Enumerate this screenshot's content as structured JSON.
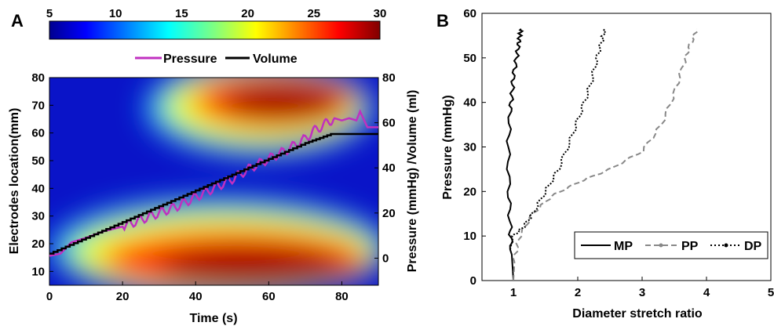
{
  "panels": {
    "a": "A",
    "b": "B"
  },
  "chart_data": [
    {
      "type": "heatmap",
      "panel": "A",
      "colorbar": {
        "ticks": [
          "5",
          "10",
          "15",
          "20",
          "25",
          "30"
        ],
        "range": [
          5,
          30
        ],
        "colormap": "jet",
        "placement": "top"
      },
      "legend": {
        "placement": "top",
        "entries": [
          {
            "label": "Pressure",
            "color": "#c030c0"
          },
          {
            "label": "Volume",
            "color": "#000000"
          }
        ]
      },
      "xlabel": "Time (s)",
      "ylabel": "Electrodes location(mm)",
      "y2label": "Pressure (mmHg) /Volume (ml)",
      "xlim": [
        0,
        90
      ],
      "ylim": [
        5,
        80
      ],
      "y2lim": [
        -12,
        80
      ],
      "xticks": [
        "0",
        "20",
        "40",
        "60",
        "80"
      ],
      "yticks": [
        "10",
        "20",
        "30",
        "40",
        "50",
        "60",
        "70",
        "80"
      ],
      "y2ticks": [
        "0",
        "20",
        "40",
        "60",
        "80"
      ],
      "series": [
        {
          "name": "Pressure",
          "axis": "right",
          "x": [
            0,
            3,
            6,
            10,
            15,
            20,
            25,
            30,
            35,
            40,
            45,
            50,
            55,
            60,
            65,
            70,
            72,
            75,
            78,
            80,
            82,
            84,
            85,
            87,
            90
          ],
          "y": [
            1,
            2,
            7,
            9,
            12,
            14,
            17,
            20,
            23,
            27,
            31,
            35,
            40,
            44,
            48,
            53,
            56,
            59,
            62,
            61,
            62,
            61,
            65,
            58,
            58
          ]
        },
        {
          "name": "Volume",
          "axis": "right",
          "x": [
            0,
            10,
            20,
            30,
            40,
            50,
            60,
            70,
            77,
            80,
            90
          ],
          "y": [
            2,
            9,
            16,
            23,
            30,
            37,
            44,
            51,
            55,
            55,
            55
          ]
        }
      ]
    },
    {
      "type": "line",
      "panel": "B",
      "xlabel": "Diameter stretch ratio",
      "ylabel": "Pressure (mmHg)",
      "xlim": [
        0,
        5
      ],
      "ylim": [
        0,
        60
      ],
      "xticks": [
        "1",
        "2",
        "3",
        "4",
        "5"
      ],
      "yticks": [
        "0",
        "10",
        "20",
        "30",
        "40",
        "50",
        "60"
      ],
      "legend": {
        "placement": "bottom-right"
      },
      "series": [
        {
          "name": "MP",
          "color": "#000000",
          "style": "solid",
          "x": [
            1.0,
            0.97,
            0.95,
            0.93,
            0.92,
            0.95,
            0.98,
            1.0,
            1.05,
            1.08,
            1.1,
            1.12
          ],
          "y": [
            0,
            7,
            12,
            20,
            30,
            38,
            42,
            46,
            50,
            53,
            55,
            56.5
          ]
        },
        {
          "name": "PP",
          "color": "#888888",
          "style": "dashed",
          "x": [
            1.0,
            1.02,
            1.1,
            1.3,
            1.6,
            2.0,
            2.5,
            3.0,
            3.3,
            3.5,
            3.65,
            3.75,
            3.85
          ],
          "y": [
            0,
            5,
            10,
            15,
            19,
            22,
            25,
            29,
            35,
            42,
            49,
            53,
            56.5
          ]
        },
        {
          "name": "DP",
          "color": "#000000",
          "style": "dotted",
          "x": [
            0.95,
            1.0,
            1.15,
            1.3,
            1.5,
            1.7,
            1.9,
            2.05,
            2.2,
            2.3,
            2.38,
            2.42
          ],
          "y": [
            7,
            10,
            12,
            15,
            20,
            25,
            32,
            38,
            44,
            50,
            54,
            56.5
          ]
        }
      ]
    }
  ]
}
